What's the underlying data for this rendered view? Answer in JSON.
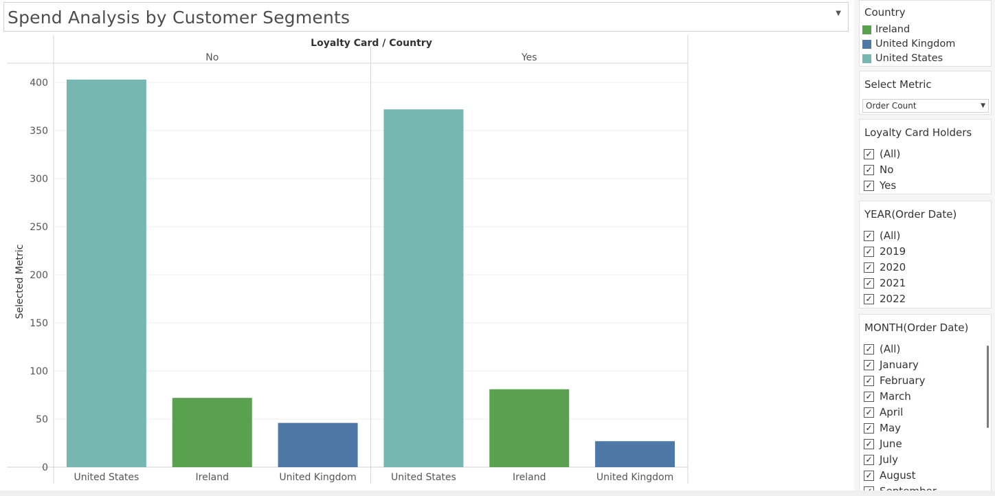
{
  "dashboard": {
    "title": "Spend Analysis by Customer Segments"
  },
  "chart_data": {
    "type": "bar",
    "header": "Loyalty Card  /  Country",
    "ylabel": "Selected Metric",
    "ylim": [
      0,
      400
    ],
    "yticks": [
      0,
      50,
      100,
      150,
      200,
      250,
      300,
      350,
      400
    ],
    "grid": true,
    "panes": [
      {
        "label": "No",
        "categories": [
          "United States",
          "Ireland",
          "United Kingdom"
        ],
        "values": [
          403,
          72,
          46
        ],
        "colors": [
          "#76b7b2",
          "#59a14f",
          "#4e79a7"
        ]
      },
      {
        "label": "Yes",
        "categories": [
          "United States",
          "Ireland",
          "United Kingdom"
        ],
        "values": [
          372,
          81,
          27
        ],
        "colors": [
          "#76b7b2",
          "#59a14f",
          "#4e79a7"
        ]
      }
    ]
  },
  "legend": {
    "title": "Country",
    "items": [
      {
        "label": "Ireland",
        "color": "#59a14f"
      },
      {
        "label": "United Kingdom",
        "color": "#4e79a7"
      },
      {
        "label": "United States",
        "color": "#76b7b2"
      }
    ]
  },
  "select_metric": {
    "title": "Select Metric",
    "value": "Order Count"
  },
  "loyalty_filter": {
    "title": "Loyalty Card Holders",
    "items": [
      "(All)",
      "No",
      "Yes"
    ]
  },
  "year_filter": {
    "title": "YEAR(Order Date)",
    "items": [
      "(All)",
      "2019",
      "2020",
      "2021",
      "2022"
    ]
  },
  "month_filter": {
    "title": "MONTH(Order Date)",
    "items": [
      "(All)",
      "January",
      "February",
      "March",
      "April",
      "May",
      "June",
      "July",
      "August",
      "September"
    ]
  }
}
